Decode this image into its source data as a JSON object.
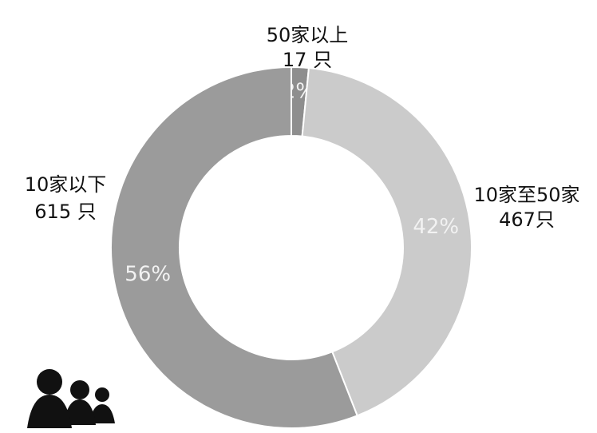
{
  "chart_data": {
    "type": "pie",
    "categories": [
      "50家以上",
      "10家至50家",
      "10家以下"
    ],
    "values": [
      17,
      467,
      615
    ],
    "value_labels": [
      "17 只",
      "467只",
      "615 只"
    ],
    "percent_labels": [
      "2%",
      "42%",
      "56%"
    ],
    "colors": [
      "#8e8e8e",
      "#cbcbcb",
      "#9b9b9b"
    ]
  }
}
